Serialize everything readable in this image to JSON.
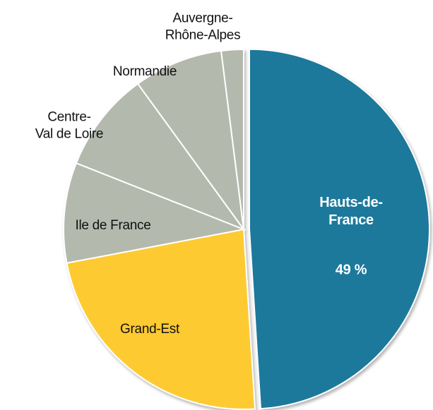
{
  "chart_data": {
    "type": "pie",
    "categories": [
      "Hauts-de-\nFrance",
      "Grand-Est",
      "Ile de France",
      "Centre-\nVal de Loire",
      "Normandie",
      "Auvergne-\nRhône-Alpes"
    ],
    "values": [
      49,
      23,
      9,
      9,
      8,
      2
    ],
    "value_labels": [
      "49 %",
      null,
      null,
      null,
      null,
      null
    ],
    "colors": [
      "#1f799b",
      "#fdca30",
      "#b4b9ad",
      "#b4b9ad",
      "#b4b9ad",
      "#b4b9ad"
    ],
    "exploded": [
      true,
      false,
      false,
      false,
      false,
      false
    ]
  }
}
